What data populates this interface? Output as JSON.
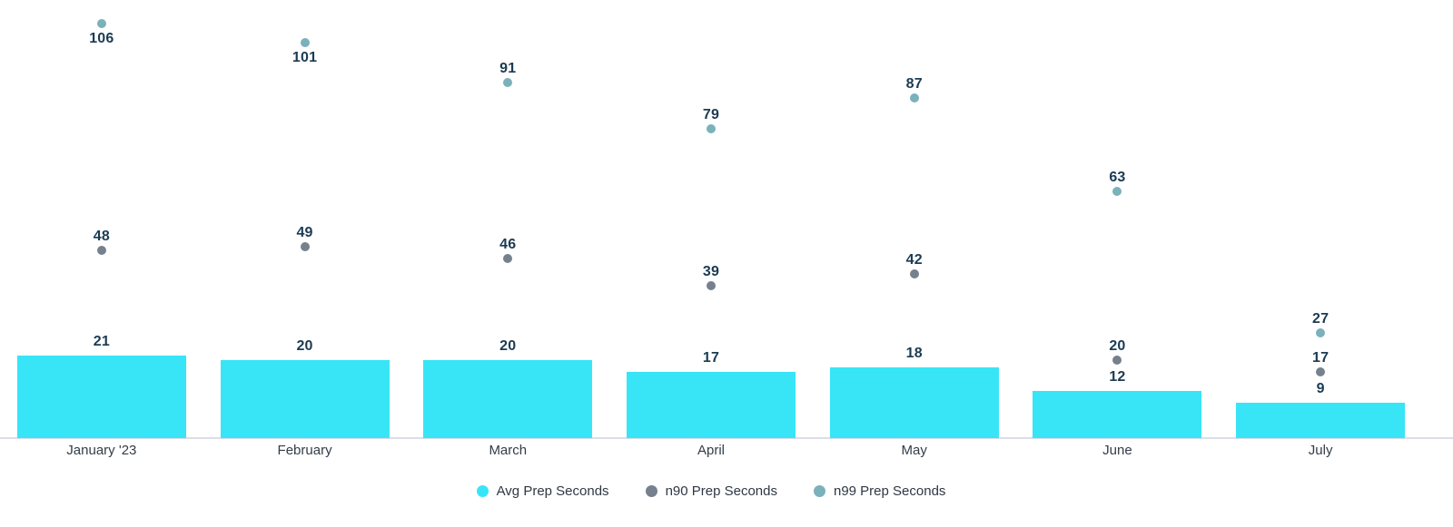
{
  "chart_data": {
    "type": "bar",
    "title": "",
    "xlabel": "",
    "ylabel": "",
    "categories": [
      "January '23",
      "February",
      "March",
      "April",
      "May",
      "June",
      "July"
    ],
    "series": [
      {
        "name": "Avg Prep Seconds",
        "kind": "bar",
        "color": "#38e5f7",
        "values": [
          21,
          20,
          20,
          17,
          18,
          12,
          9
        ]
      },
      {
        "name": "n90 Prep Seconds",
        "kind": "point",
        "color": "#75818d",
        "values": [
          48,
          49,
          46,
          39,
          42,
          20,
          17
        ]
      },
      {
        "name": "n99 Prep Seconds",
        "kind": "point",
        "color": "#7bb1bb",
        "values": [
          106,
          101,
          91,
          79,
          87,
          63,
          27
        ]
      }
    ],
    "data_labels": true,
    "grid": "off",
    "legend_position": "bottom",
    "ylim": [
      0,
      112
    ],
    "colors": {
      "axis_line": "#dbdde8",
      "value_label": "#1b3b52",
      "month_label": "#333c47",
      "legend_label": "#2e3844",
      "background": "#ffffff"
    }
  }
}
